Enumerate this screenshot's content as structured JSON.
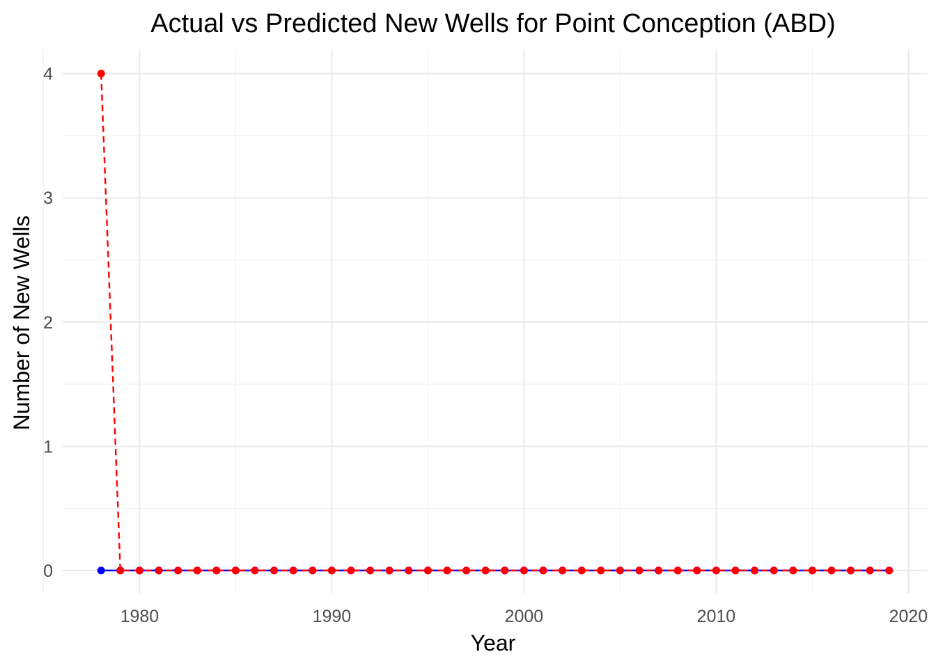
{
  "chart_data": {
    "type": "line",
    "title": "Actual vs Predicted New Wells for Point Conception (ABD)",
    "xlabel": "Year",
    "ylabel": "Number of New Wells",
    "xlim": [
      1976,
      2021
    ],
    "ylim": [
      -0.18,
      4.2
    ],
    "x_ticks": [
      1980,
      1990,
      2000,
      2010,
      2020
    ],
    "y_ticks": [
      0,
      1,
      2,
      3,
      4
    ],
    "grid": true,
    "x": [
      1978,
      1979,
      1980,
      1981,
      1982,
      1983,
      1984,
      1985,
      1986,
      1987,
      1988,
      1989,
      1990,
      1991,
      1992,
      1993,
      1994,
      1995,
      1996,
      1997,
      1998,
      1999,
      2000,
      2001,
      2002,
      2003,
      2004,
      2005,
      2006,
      2007,
      2008,
      2009,
      2010,
      2011,
      2012,
      2013,
      2014,
      2015,
      2016,
      2017,
      2018,
      2019
    ],
    "series": [
      {
        "color": "#0000ff",
        "line_style": "solid",
        "values": [
          0,
          0,
          0,
          0,
          0,
          0,
          0,
          0,
          0,
          0,
          0,
          0,
          0,
          0,
          0,
          0,
          0,
          0,
          0,
          0,
          0,
          0,
          0,
          0,
          0,
          0,
          0,
          0,
          0,
          0,
          0,
          0,
          0,
          0,
          0,
          0,
          0,
          0,
          0,
          0,
          0,
          0
        ]
      },
      {
        "color": "#ff0000",
        "line_style": "dashed",
        "values": [
          4,
          0,
          0,
          0,
          0,
          0,
          0,
          0,
          0,
          0,
          0,
          0,
          0,
          0,
          0,
          0,
          0,
          0,
          0,
          0,
          0,
          0,
          0,
          0,
          0,
          0,
          0,
          0,
          0,
          0,
          0,
          0,
          0,
          0,
          0,
          0,
          0,
          0,
          0,
          0,
          0,
          0
        ]
      }
    ]
  }
}
